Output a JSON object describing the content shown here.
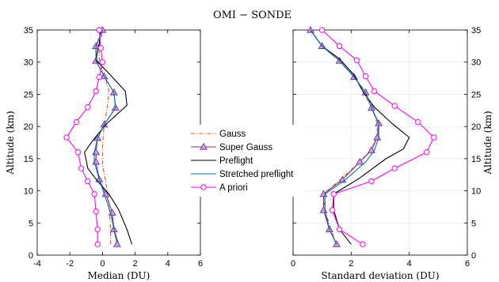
{
  "figure": {
    "title": "OMI − SONDE"
  },
  "colors": {
    "gauss": "#d95319",
    "super_gauss": "#7e2f8e",
    "preflight": "#000000",
    "stretched_preflight": "#0072bd",
    "a_priori": "#ff00ff"
  },
  "chart_data": [
    {
      "type": "line",
      "xlabel": "Median (DU)",
      "ylabel": "Altitude (km)",
      "xlim": [
        -4,
        6
      ],
      "ylim": [
        0,
        35
      ],
      "xticks": [
        "-4",
        "-2",
        "0",
        "2",
        "4",
        "6"
      ],
      "yticks": [
        "0",
        "5",
        "10",
        "15",
        "20",
        "25",
        "30",
        "35"
      ],
      "ytick_side": "left",
      "grid": false,
      "series": [
        {
          "name": "Gauss",
          "style": "dashdot",
          "color": "#d95319",
          "marker": "none",
          "points": [
            [
              0.5,
              1.7
            ],
            [
              0.5,
              4
            ],
            [
              0.4,
              8
            ],
            [
              0.2,
              11.5
            ],
            [
              0.0,
              14
            ],
            [
              0.0,
              17
            ],
            [
              0.1,
              20.3
            ],
            [
              0.3,
              23
            ],
            [
              0.4,
              25.5
            ],
            [
              0.1,
              28
            ],
            [
              -0.2,
              30.5
            ],
            [
              -0.2,
              32.5
            ],
            [
              0.0,
              34.8
            ]
          ]
        },
        {
          "name": "Super Gauss",
          "style": "solid",
          "color": "#7e2f8e",
          "marker": "triangle",
          "points": [
            [
              0.9,
              1.7
            ],
            [
              0.7,
              4
            ],
            [
              0.6,
              6.6
            ],
            [
              0.2,
              9.5
            ],
            [
              -0.2,
              11.8
            ],
            [
              -0.4,
              14.5
            ],
            [
              -0.4,
              16
            ],
            [
              -0.3,
              18.2
            ],
            [
              0.1,
              20.3
            ],
            [
              0.8,
              22.9
            ],
            [
              0.7,
              25.3
            ],
            [
              0.1,
              27.8
            ],
            [
              -0.4,
              30.2
            ],
            [
              -0.4,
              32.5
            ],
            [
              0.0,
              35
            ]
          ]
        },
        {
          "name": "Preflight",
          "style": "solid",
          "color": "#000000",
          "marker": "none",
          "points": [
            [
              1.8,
              1.7
            ],
            [
              1.5,
              4
            ],
            [
              1.0,
              7
            ],
            [
              0.4,
              9.5
            ],
            [
              -0.3,
              11.5
            ],
            [
              -0.9,
              13.5
            ],
            [
              -1.1,
              16
            ],
            [
              -0.6,
              17.8
            ],
            [
              0.2,
              20.3
            ],
            [
              1.5,
              23.3
            ],
            [
              1.4,
              25.5
            ],
            [
              0.3,
              28.5
            ],
            [
              -0.4,
              30.3
            ],
            [
              -0.2,
              33
            ],
            [
              -0.1,
              35
            ]
          ]
        },
        {
          "name": "Stretched preflight",
          "style": "solid",
          "color": "#0072bd",
          "marker": "none",
          "points": [
            [
              1.0,
              1.7
            ],
            [
              0.7,
              4
            ],
            [
              0.5,
              6.6
            ],
            [
              0.1,
              9.5
            ],
            [
              -0.2,
              11.8
            ],
            [
              -0.5,
              14.5
            ],
            [
              -0.5,
              16
            ],
            [
              -0.3,
              18.2
            ],
            [
              0.1,
              20.3
            ],
            [
              0.8,
              22.9
            ],
            [
              0.7,
              25.3
            ],
            [
              0.1,
              27.8
            ],
            [
              -0.4,
              30.2
            ],
            [
              -0.4,
              32.5
            ],
            [
              0.0,
              35
            ]
          ]
        },
        {
          "name": "A priori",
          "style": "solid",
          "color": "#ff00ff",
          "marker": "circle",
          "points": [
            [
              -0.3,
              1.7
            ],
            [
              -0.3,
              4
            ],
            [
              -0.4,
              6.8
            ],
            [
              -0.5,
              9.5
            ],
            [
              -0.9,
              11.5
            ],
            [
              -1.3,
              13.5
            ],
            [
              -1.5,
              16
            ],
            [
              -2.2,
              18.3
            ],
            [
              -1.6,
              20.7
            ],
            [
              -0.9,
              23
            ],
            [
              -0.4,
              25.5
            ],
            [
              -0.2,
              27.7
            ],
            [
              0.0,
              30
            ],
            [
              -0.1,
              32.2
            ],
            [
              -0.2,
              35
            ]
          ]
        }
      ]
    },
    {
      "type": "line",
      "xlabel": "Standard deviation (DU)",
      "ylabel": "Altitude (km)",
      "xlim": [
        0,
        6
      ],
      "ylim": [
        0,
        35
      ],
      "xticks": [
        "0",
        "2",
        "4",
        "6"
      ],
      "yticks": [
        "0",
        "5",
        "10",
        "15",
        "20",
        "25",
        "30",
        "35"
      ],
      "ytick_side": "right",
      "grid": true,
      "series": [
        {
          "name": "Gauss",
          "style": "dashdot",
          "color": "#d95319",
          "marker": "none",
          "points": [
            [
              1.5,
              1.7
            ],
            [
              1.3,
              4
            ],
            [
              1.1,
              7
            ],
            [
              1.05,
              9.5
            ],
            [
              1.7,
              12
            ],
            [
              2.3,
              14.5
            ],
            [
              2.7,
              16.5
            ],
            [
              2.9,
              18.5
            ],
            [
              2.9,
              20.5
            ],
            [
              2.7,
              23
            ],
            [
              2.4,
              25.5
            ],
            [
              2.1,
              28
            ],
            [
              1.6,
              30.5
            ],
            [
              1.0,
              32.5
            ],
            [
              0.6,
              35
            ]
          ]
        },
        {
          "name": "Super Gauss",
          "style": "solid",
          "color": "#7e2f8e",
          "marker": "triangle",
          "points": [
            [
              1.5,
              1.7
            ],
            [
              1.25,
              4
            ],
            [
              1.05,
              7
            ],
            [
              1.05,
              9.5
            ],
            [
              1.7,
              11.7
            ],
            [
              2.3,
              14.5
            ],
            [
              2.7,
              16.3
            ],
            [
              2.9,
              18.3
            ],
            [
              2.95,
              20.5
            ],
            [
              2.7,
              22.9
            ],
            [
              2.5,
              25.3
            ],
            [
              2.1,
              27.7
            ],
            [
              1.6,
              30.2
            ],
            [
              1.0,
              32.5
            ],
            [
              0.6,
              35
            ]
          ]
        },
        {
          "name": "Preflight",
          "style": "solid",
          "color": "#000000",
          "marker": "none",
          "points": [
            [
              2.0,
              1.7
            ],
            [
              1.6,
              4
            ],
            [
              1.4,
              7
            ],
            [
              1.4,
              9.5
            ],
            [
              2.3,
              12
            ],
            [
              3.2,
              15
            ],
            [
              3.8,
              16.5
            ],
            [
              4.0,
              18.3
            ],
            [
              3.4,
              20.5
            ],
            [
              2.8,
              23
            ],
            [
              2.4,
              25.5
            ],
            [
              2.1,
              28
            ],
            [
              1.6,
              30.5
            ],
            [
              1.0,
              32.5
            ],
            [
              0.6,
              35
            ]
          ]
        },
        {
          "name": "Stretched preflight",
          "style": "solid",
          "color": "#0072bd",
          "marker": "none",
          "points": [
            [
              1.5,
              1.7
            ],
            [
              1.25,
              4
            ],
            [
              1.1,
              7
            ],
            [
              1.1,
              9.5
            ],
            [
              1.8,
              11.7
            ],
            [
              2.5,
              14.5
            ],
            [
              2.8,
              16.3
            ],
            [
              2.95,
              18.3
            ],
            [
              2.95,
              20.5
            ],
            [
              2.7,
              22.9
            ],
            [
              2.5,
              25.3
            ],
            [
              2.1,
              27.7
            ],
            [
              1.6,
              30.2
            ],
            [
              1.0,
              32.5
            ],
            [
              0.6,
              35
            ]
          ]
        },
        {
          "name": "A priori",
          "style": "solid",
          "color": "#ff00ff",
          "marker": "circle",
          "points": [
            [
              2.4,
              1.7
            ],
            [
              1.6,
              4
            ],
            [
              1.35,
              7
            ],
            [
              1.4,
              9.5
            ],
            [
              2.7,
              11.5
            ],
            [
              3.5,
              13.5
            ],
            [
              4.6,
              16
            ],
            [
              4.85,
              18.3
            ],
            [
              4.3,
              20.7
            ],
            [
              3.5,
              23.2
            ],
            [
              2.8,
              25.5
            ],
            [
              2.5,
              27.8
            ],
            [
              2.2,
              30.3
            ],
            [
              1.6,
              32.5
            ],
            [
              1.0,
              35
            ]
          ]
        }
      ]
    }
  ]
}
